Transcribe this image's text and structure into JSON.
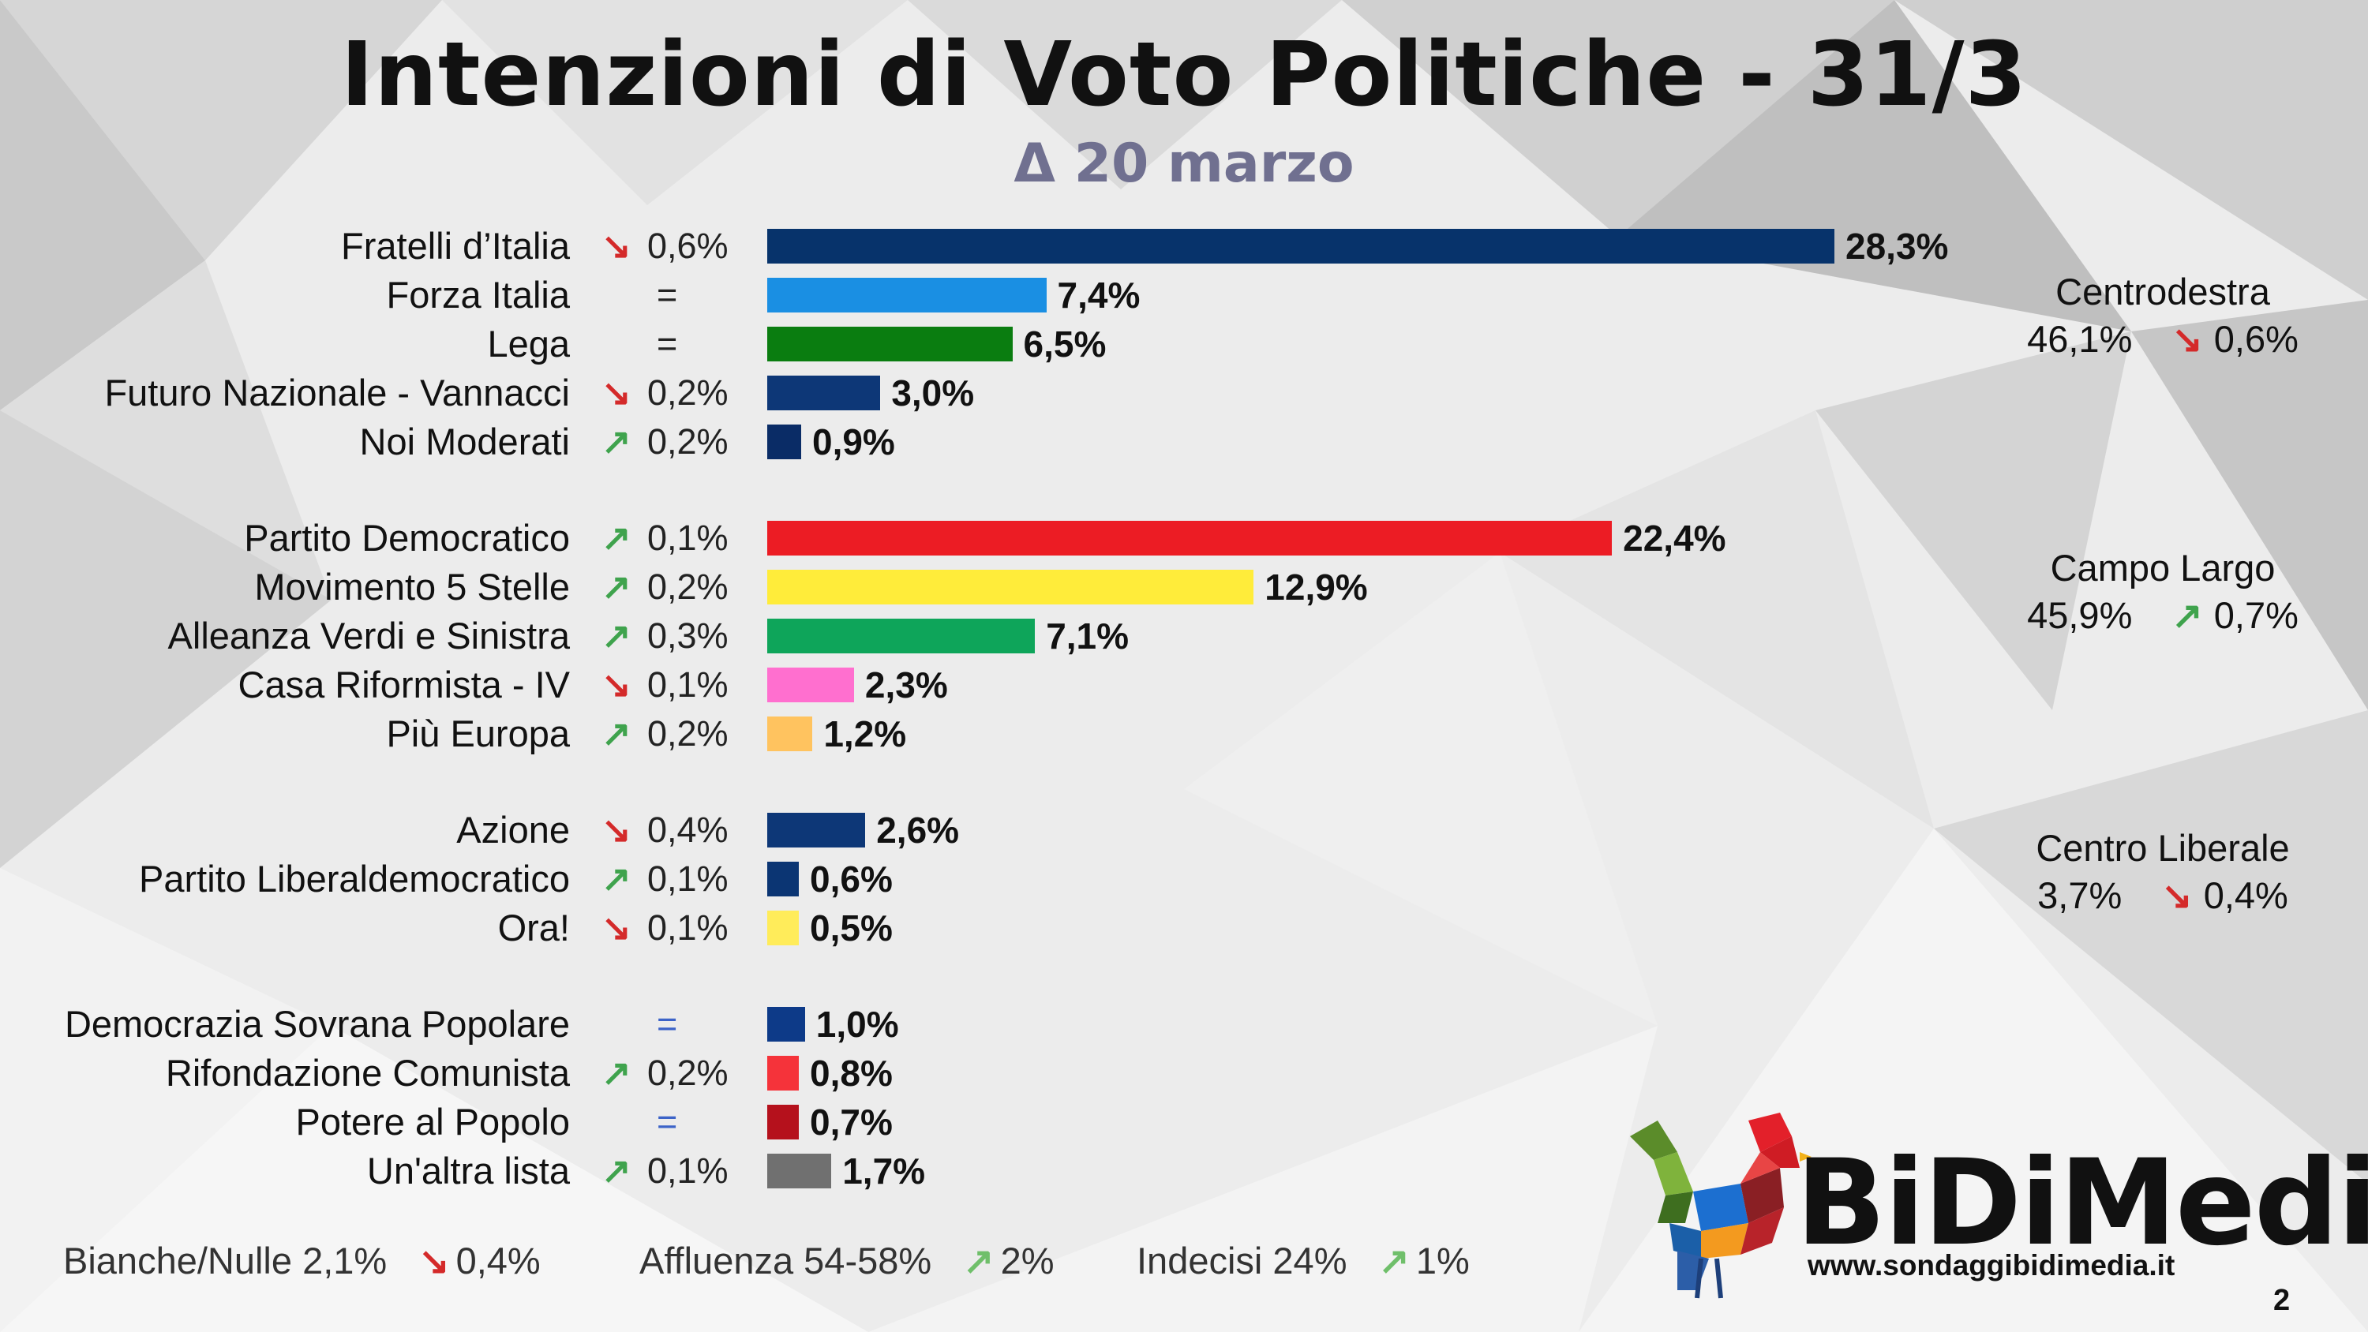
{
  "header": {
    "title": "Intenzioni di Voto Politiche  - 31/3",
    "subtitle": "Δ 20 marzo"
  },
  "chart_data": {
    "type": "bar",
    "orientation": "horizontal",
    "title": "Intenzioni di Voto Politiche  - 31/3",
    "subtitle": "Δ 20 marzo",
    "unit": "%",
    "categories": [
      "Fratelli d’Italia",
      "Forza Italia",
      "Lega",
      "Futuro Nazionale - Vannacci",
      "Noi Moderati",
      "Partito Democratico",
      "Movimento 5 Stelle",
      "Alleanza Verdi e Sinistra",
      "Casa Riformista - IV",
      "Più Europa",
      "Azione",
      "Partito Liberaldemocratico",
      "Ora!",
      "Democrazia Sovrana Popolare",
      "Rifondazione Comunista",
      "Potere al Popolo",
      "Un'altra lista"
    ],
    "values": [
      28.3,
      7.4,
      6.5,
      3.0,
      0.9,
      22.4,
      12.9,
      7.1,
      2.3,
      1.2,
      2.6,
      0.6,
      0.5,
      1.0,
      0.8,
      0.7,
      1.7
    ],
    "value_labels": [
      "28,3%",
      "7,4%",
      "6,5%",
      "3,0%",
      "0,9%",
      "22,4%",
      "12,9%",
      "7,1%",
      "2,3%",
      "1,2%",
      "2,6%",
      "0,6%",
      "0,5%",
      "1,0%",
      "0,8%",
      "0,7%",
      "1,7%"
    ],
    "colors": [
      "#07336b",
      "#1a8fe3",
      "#0a7d10",
      "#0d3777",
      "#0a2c66",
      "#ec1c24",
      "#ffec3a",
      "#0ea55a",
      "#ff6fcf",
      "#ffc35f",
      "#0d3777",
      "#0b3573",
      "#ffec5a",
      "#0d3a88",
      "#f5333a",
      "#b5111c",
      "#707070"
    ],
    "changes": [
      {
        "dir": "down",
        "text": "0,6%"
      },
      {
        "dir": "eq",
        "text": "="
      },
      {
        "dir": "eq",
        "text": "="
      },
      {
        "dir": "down",
        "text": "0,2%"
      },
      {
        "dir": "up",
        "text": "0,2%"
      },
      {
        "dir": "up",
        "text": "0,1%"
      },
      {
        "dir": "up",
        "text": "0,2%"
      },
      {
        "dir": "up",
        "text": "0,3%"
      },
      {
        "dir": "down",
        "text": "0,1%"
      },
      {
        "dir": "up",
        "text": "0,2%"
      },
      {
        "dir": "down",
        "text": "0,4%"
      },
      {
        "dir": "up",
        "text": "0,1%"
      },
      {
        "dir": "down",
        "text": "0,1%"
      },
      {
        "dir": "eq",
        "text": "="
      },
      {
        "dir": "up",
        "text": "0,2%"
      },
      {
        "dir": "eq",
        "text": "="
      },
      {
        "dir": "up",
        "text": "0,1%"
      }
    ],
    "groups": [
      {
        "name": "Centrodestra",
        "total": "46,1%",
        "dir": "down",
        "change": "0,6%"
      },
      {
        "name": "Campo Largo",
        "total": "45,9%",
        "dir": "up",
        "change": "0,7%"
      },
      {
        "name": "Centro Liberale",
        "total": "3,7%",
        "dir": "down",
        "change": "0,4%"
      }
    ],
    "grid": false,
    "legend": "none"
  },
  "icons": {
    "down": "↘",
    "up": "↗"
  },
  "footer": {
    "bianche_label": "Bianche/Nulle 2,1%",
    "bianche_change": "0,4%",
    "affluenza_label": "Affluenza 54-58%",
    "affluenza_change": "2%",
    "indecisi_label": "Indecisi 24%",
    "indecisi_change": "1%"
  },
  "brand": {
    "name": "BiDiMedia",
    "url": "www.sondaggibidimedia.it",
    "page": "2"
  }
}
